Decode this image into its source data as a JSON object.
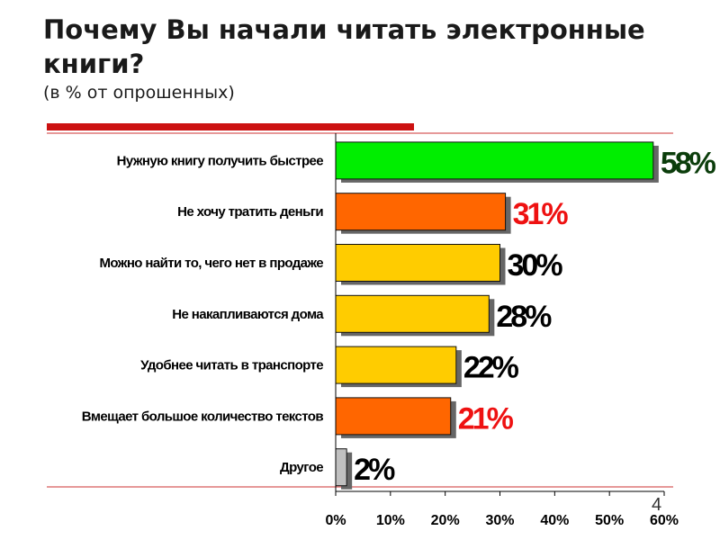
{
  "header": {
    "title": "Почему Вы начали читать электронные книги?",
    "subtitle": "(в % от опрошенных)"
  },
  "page_number": "4",
  "colors": {
    "accent_line": "#cc1111",
    "thin_rule": "#cc3333",
    "axis": "#000000",
    "green": "#00ee00",
    "orange": "#ff6600",
    "yellow": "#ffcc00",
    "gray": "#c0c0c0",
    "label_dark_green": "#0b3d0b",
    "label_red": "#ee1111",
    "label_black": "#000000"
  },
  "chart_data": {
    "type": "bar",
    "orientation": "horizontal",
    "title": "Почему Вы начали читать электронные книги?",
    "subtitle": "(в % от опрошенных)",
    "categories": [
      "Нужную книгу получить быстрее",
      "Не хочу тратить деньги",
      "Можно найти то, чего нет в продаже",
      "Не накапливаются дома",
      "Удобнее читать в транспорте",
      "Вмещает большое количество текстов",
      "Другое"
    ],
    "values": [
      58,
      31,
      30,
      28,
      22,
      21,
      2
    ],
    "value_labels": [
      "58%",
      "31%",
      "30%",
      "28%",
      "22%",
      "21%",
      "2%"
    ],
    "bar_colors": [
      "#00ee00",
      "#ff6600",
      "#ffcc00",
      "#ffcc00",
      "#ffcc00",
      "#ff6600",
      "#c0c0c0"
    ],
    "label_colors": [
      "#0b3d0b",
      "#ee1111",
      "#000000",
      "#000000",
      "#000000",
      "#ee1111",
      "#000000"
    ],
    "xlim": [
      0,
      60
    ],
    "xticks": [
      0,
      10,
      20,
      30,
      40,
      50,
      60
    ],
    "xtick_labels": [
      "0%",
      "10%",
      "20%",
      "30%",
      "40%",
      "50%",
      "60%"
    ],
    "xlabel": "",
    "ylabel": "",
    "grid": false,
    "legend": "none"
  }
}
